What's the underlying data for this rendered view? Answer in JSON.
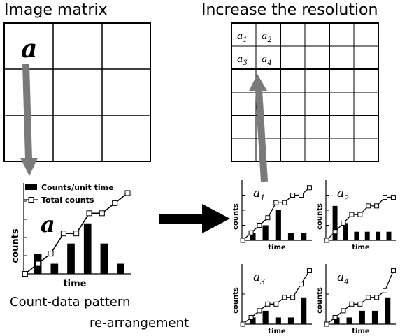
{
  "titles": {
    "left": "Image matrix",
    "right": "Increase the resolution"
  },
  "captions": {
    "line1": "Count-data pattern",
    "line2": "re-arrangement"
  },
  "matrix": {
    "pixel_label": "a"
  },
  "subpixels": {
    "base": "a",
    "labels": [
      "1",
      "2",
      "3",
      "4"
    ]
  },
  "big_chart": {
    "legend": [
      "Counts/unit time",
      "Total counts"
    ],
    "ylabel": "counts",
    "xlabel": "time",
    "pixel_label": "a"
  },
  "small_charts": {
    "ylabel": "counts",
    "xlabel": "time"
  },
  "colors": {
    "arrow_gray": "#7a7a7a",
    "line": "#000000"
  },
  "chart_data": [
    {
      "type": "bar",
      "subtitle": "a",
      "xlabel": "time",
      "ylabel": "counts",
      "legend": [
        "Counts/unit time",
        "Total counts"
      ],
      "legend_placement": "top-left",
      "bar_values": [
        2,
        1,
        3,
        5,
        3,
        1
      ],
      "cumulative_values": [
        0,
        1,
        2,
        4,
        4,
        6,
        6,
        7,
        8
      ],
      "ylim": [
        0,
        9
      ]
    },
    {
      "type": "bar",
      "subtitle": "a1",
      "xlabel": "time",
      "ylabel": "counts",
      "bar_values": [
        1,
        2,
        4,
        1,
        1
      ],
      "cumulative_values": [
        0,
        1,
        2,
        3,
        5,
        5,
        6,
        6,
        7
      ],
      "ylim": [
        0,
        8
      ]
    },
    {
      "type": "bar",
      "subtitle": "a2",
      "xlabel": "time",
      "ylabel": "counts",
      "bar_values": [
        4,
        2,
        1,
        1,
        1,
        1
      ],
      "cumulative_values": [
        0,
        1,
        2,
        3,
        3,
        4,
        4,
        5,
        5
      ],
      "ylim": [
        0,
        7
      ]
    },
    {
      "type": "bar",
      "subtitle": "a3",
      "xlabel": "time",
      "ylabel": "counts",
      "bar_values": [
        1,
        2,
        1,
        1,
        4
      ],
      "cumulative_values": [
        0,
        1,
        2,
        3,
        3,
        4,
        4,
        6,
        8
      ],
      "ylim": [
        0,
        9
      ]
    },
    {
      "type": "bar",
      "subtitle": "a4",
      "xlabel": "time",
      "ylabel": "counts",
      "bar_values": [
        1,
        1,
        2,
        2,
        4
      ],
      "cumulative_values": [
        0,
        1,
        2,
        3,
        3,
        4,
        4,
        5,
        8
      ],
      "ylim": [
        0,
        9
      ]
    }
  ]
}
